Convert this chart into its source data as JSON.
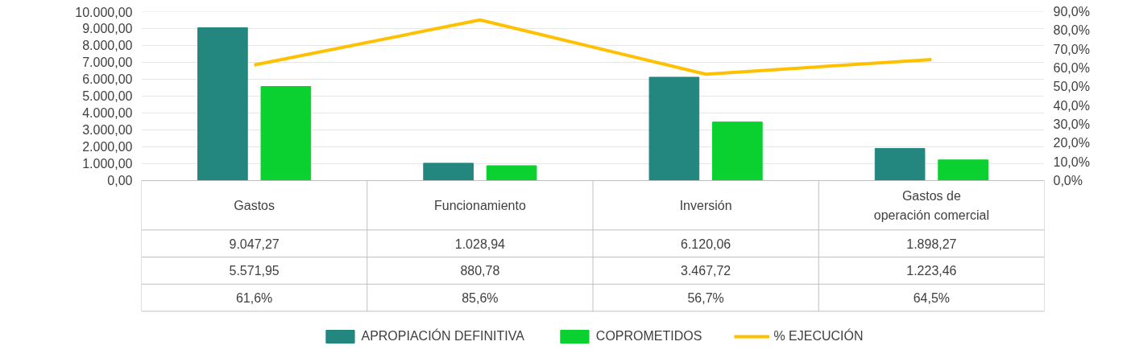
{
  "chart_data": {
    "type": "bar",
    "categories": [
      "Gastos",
      "Funcionamiento",
      "Inversión",
      "Gastos de operación comercial"
    ],
    "series": [
      {
        "name": "APROPIACIÓN DEFINITIVA",
        "color": "#23867f",
        "values": [
          9047.27,
          1028.94,
          6120.06,
          1898.27
        ],
        "value_labels": [
          "9.047,27",
          "1.028,94",
          "6.120,06",
          "1.898,27"
        ]
      },
      {
        "name": "COPROMETIDOS",
        "color": "#0ad130",
        "values": [
          5571.95,
          880.78,
          3467.72,
          1223.46
        ],
        "value_labels": [
          "5.571,95",
          "880,78",
          "3.467,72",
          "1.223,46"
        ]
      },
      {
        "name": "% EJECUCIÓN",
        "type": "line",
        "axis": "y2",
        "color": "#ffc000",
        "values": [
          61.6,
          85.6,
          56.7,
          64.5
        ],
        "value_labels": [
          "61,6%",
          "85,6%",
          "56,7%",
          "64,5%"
        ]
      }
    ],
    "ylim": [
      0,
      10000
    ],
    "yticks": [
      {
        "value": 0,
        "label": "0,00"
      },
      {
        "value": 1000,
        "label": "1.000,00"
      },
      {
        "value": 2000,
        "label": "2.000,00"
      },
      {
        "value": 3000,
        "label": "3.000,00"
      },
      {
        "value": 4000,
        "label": "4.000,00"
      },
      {
        "value": 5000,
        "label": "5.000,00"
      },
      {
        "value": 6000,
        "label": "6.000,00"
      },
      {
        "value": 7000,
        "label": "7.000,00"
      },
      {
        "value": 8000,
        "label": "8.000,00"
      },
      {
        "value": 9000,
        "label": "9.000,00"
      },
      {
        "value": 10000,
        "label": "10.000,00"
      }
    ],
    "y2lim": [
      0,
      90
    ],
    "y2ticks": [
      {
        "value": 0,
        "label": "0,0%"
      },
      {
        "value": 10,
        "label": "10,0%"
      },
      {
        "value": 20,
        "label": "20,0%"
      },
      {
        "value": 30,
        "label": "30,0%"
      },
      {
        "value": 40,
        "label": "40,0%"
      },
      {
        "value": 50,
        "label": "50,0%"
      },
      {
        "value": 60,
        "label": "60,0%"
      },
      {
        "value": 70,
        "label": "70,0%"
      },
      {
        "value": 80,
        "label": "80,0%"
      },
      {
        "value": 90,
        "label": "90,0%"
      }
    ],
    "grid": "y",
    "legend": "bottom"
  }
}
